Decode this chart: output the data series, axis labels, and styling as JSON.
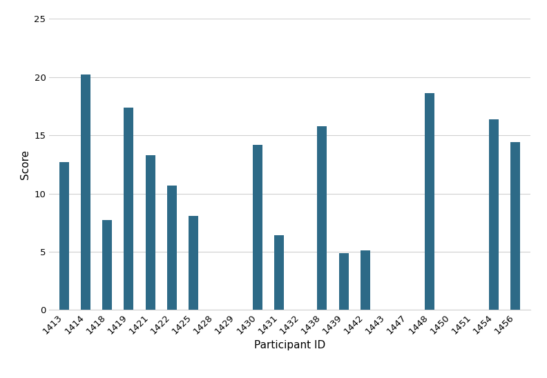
{
  "categories": [
    "1413",
    "1414",
    "1418",
    "1419",
    "1421",
    "1422",
    "1425",
    "1428",
    "1429",
    "1430",
    "1431",
    "1432",
    "1438",
    "1439",
    "1442",
    "1443",
    "1447",
    "1448",
    "1450",
    "1451",
    "1454",
    "1456"
  ],
  "values": [
    12.7,
    20.2,
    7.7,
    17.4,
    13.3,
    10.7,
    8.1,
    0,
    0,
    14.2,
    6.4,
    0,
    15.8,
    4.9,
    5.1,
    0,
    0,
    18.6,
    0,
    0,
    16.4,
    14.4
  ],
  "bar_color": "#2d6a87",
  "xlabel": "Participant ID",
  "ylabel": "Score",
  "ylim": [
    0,
    25
  ],
  "yticks": [
    0,
    5,
    10,
    15,
    20,
    25
  ],
  "background_color": "#ffffff",
  "grid_color": "#d0d0d0",
  "tick_label_fontsize": 9.5,
  "axis_label_fontsize": 11,
  "bar_width": 0.45
}
